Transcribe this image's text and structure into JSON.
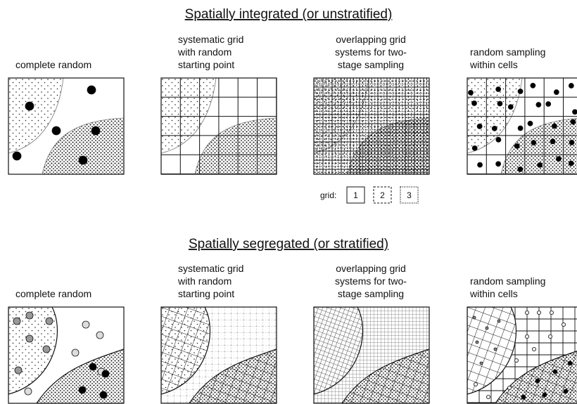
{
  "sections": [
    {
      "title": "Spatially integrated (or unstratified)",
      "panels": [
        {
          "caption": [
            "complete random"
          ]
        },
        {
          "caption": [
            "systematic grid",
            "with random",
            "starting point"
          ]
        },
        {
          "caption": [
            "overlapping grid",
            "systems for two-",
            "stage sampling"
          ]
        },
        {
          "caption": [
            "random sampling",
            "within cells"
          ]
        }
      ],
      "legend": {
        "label": "grid:",
        "items": [
          "1",
          "2",
          "3"
        ]
      }
    },
    {
      "title": "Spatially segregated (or stratified)",
      "panels": [
        {
          "caption": [
            "complete random"
          ]
        },
        {
          "caption": [
            "systematic grid",
            "with random",
            "starting point"
          ]
        },
        {
          "caption": [
            "overlapping grid",
            "systems for two-",
            "stage sampling"
          ]
        },
        {
          "caption": [
            "random sampling",
            "within cells"
          ]
        }
      ]
    }
  ]
}
